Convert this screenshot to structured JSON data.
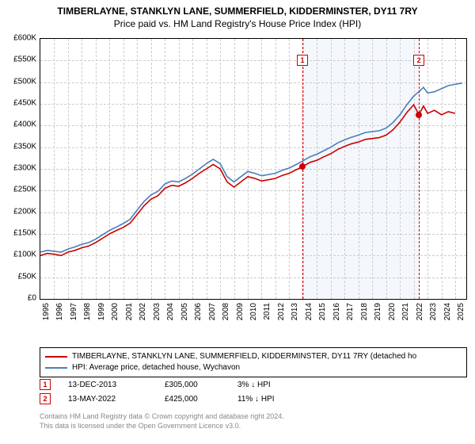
{
  "title": "TIMBERLAYNE, STANKLYN LANE, SUMMERFIELD, KIDDERMINSTER, DY11 7RY",
  "subtitle": "Price paid vs. HM Land Registry's House Price Index (HPI)",
  "chart": {
    "type": "line",
    "xlim": [
      1995,
      2025.8
    ],
    "ylim": [
      0,
      600000
    ],
    "ytick_step": 50000,
    "ylabels": [
      "£0",
      "£50K",
      "£100K",
      "£150K",
      "£200K",
      "£250K",
      "£300K",
      "£350K",
      "£400K",
      "£450K",
      "£500K",
      "£550K",
      "£600K"
    ],
    "xlabels": [
      "1995",
      "1996",
      "1997",
      "1998",
      "1999",
      "2000",
      "2001",
      "2002",
      "2003",
      "2004",
      "2005",
      "2006",
      "2007",
      "2008",
      "2009",
      "2010",
      "2011",
      "2012",
      "2013",
      "2014",
      "2015",
      "2016",
      "2017",
      "2018",
      "2019",
      "2020",
      "2021",
      "2022",
      "2023",
      "2024",
      "2025"
    ],
    "grid_color": "#cccccc",
    "background_color": "#ffffff",
    "shade_ranges": [
      {
        "x0": 2013.95,
        "x1": 2022.37
      }
    ],
    "series": [
      {
        "name": "property",
        "color": "#cc0000",
        "width": 1.6,
        "legend": "TIMBERLAYNE, STANKLYN LANE, SUMMERFIELD, KIDDERMINSTER, DY11 7RY (detached ho",
        "points": [
          [
            1995,
            100000
          ],
          [
            1995.5,
            105000
          ],
          [
            1996,
            103000
          ],
          [
            1996.5,
            100000
          ],
          [
            1997,
            108000
          ],
          [
            1997.5,
            112000
          ],
          [
            1998,
            118000
          ],
          [
            1998.5,
            122000
          ],
          [
            1999,
            130000
          ],
          [
            1999.5,
            140000
          ],
          [
            2000,
            150000
          ],
          [
            2000.5,
            158000
          ],
          [
            2001,
            165000
          ],
          [
            2001.5,
            175000
          ],
          [
            2002,
            195000
          ],
          [
            2002.5,
            215000
          ],
          [
            2003,
            230000
          ],
          [
            2003.5,
            238000
          ],
          [
            2004,
            255000
          ],
          [
            2004.5,
            262000
          ],
          [
            2005,
            260000
          ],
          [
            2005.5,
            268000
          ],
          [
            2006,
            278000
          ],
          [
            2006.5,
            290000
          ],
          [
            2007,
            300000
          ],
          [
            2007.5,
            310000
          ],
          [
            2008,
            300000
          ],
          [
            2008.5,
            270000
          ],
          [
            2009,
            258000
          ],
          [
            2009.5,
            270000
          ],
          [
            2010,
            282000
          ],
          [
            2010.5,
            278000
          ],
          [
            2011,
            272000
          ],
          [
            2011.5,
            275000
          ],
          [
            2012,
            278000
          ],
          [
            2012.5,
            285000
          ],
          [
            2013,
            290000
          ],
          [
            2013.5,
            298000
          ],
          [
            2013.95,
            305000
          ],
          [
            2014.5,
            315000
          ],
          [
            2015,
            320000
          ],
          [
            2015.5,
            328000
          ],
          [
            2016,
            335000
          ],
          [
            2016.5,
            345000
          ],
          [
            2017,
            352000
          ],
          [
            2017.5,
            358000
          ],
          [
            2018,
            362000
          ],
          [
            2018.5,
            368000
          ],
          [
            2019,
            370000
          ],
          [
            2019.5,
            372000
          ],
          [
            2020,
            378000
          ],
          [
            2020.5,
            390000
          ],
          [
            2021,
            408000
          ],
          [
            2021.5,
            430000
          ],
          [
            2022,
            448000
          ],
          [
            2022.37,
            425000
          ],
          [
            2022.7,
            445000
          ],
          [
            2023,
            428000
          ],
          [
            2023.5,
            435000
          ],
          [
            2024,
            425000
          ],
          [
            2024.5,
            432000
          ],
          [
            2025,
            428000
          ]
        ]
      },
      {
        "name": "hpi",
        "color": "#4a7ebb",
        "width": 1.6,
        "legend": "HPI: Average price, detached house, Wychavon",
        "points": [
          [
            1995,
            108000
          ],
          [
            1995.5,
            112000
          ],
          [
            1996,
            110000
          ],
          [
            1996.5,
            108000
          ],
          [
            1997,
            115000
          ],
          [
            1997.5,
            120000
          ],
          [
            1998,
            126000
          ],
          [
            1998.5,
            130000
          ],
          [
            1999,
            138000
          ],
          [
            1999.5,
            148000
          ],
          [
            2000,
            158000
          ],
          [
            2000.5,
            166000
          ],
          [
            2001,
            174000
          ],
          [
            2001.5,
            184000
          ],
          [
            2002,
            205000
          ],
          [
            2002.5,
            225000
          ],
          [
            2003,
            240000
          ],
          [
            2003.5,
            248000
          ],
          [
            2004,
            265000
          ],
          [
            2004.5,
            272000
          ],
          [
            2005,
            270000
          ],
          [
            2005.5,
            278000
          ],
          [
            2006,
            288000
          ],
          [
            2006.5,
            300000
          ],
          [
            2007,
            312000
          ],
          [
            2007.5,
            322000
          ],
          [
            2008,
            312000
          ],
          [
            2008.5,
            282000
          ],
          [
            2009,
            270000
          ],
          [
            2009.5,
            282000
          ],
          [
            2010,
            294000
          ],
          [
            2010.5,
            290000
          ],
          [
            2011,
            284000
          ],
          [
            2011.5,
            287000
          ],
          [
            2012,
            290000
          ],
          [
            2012.5,
            297000
          ],
          [
            2013,
            302000
          ],
          [
            2013.5,
            310000
          ],
          [
            2013.95,
            318000
          ],
          [
            2014.5,
            328000
          ],
          [
            2015,
            334000
          ],
          [
            2015.5,
            342000
          ],
          [
            2016,
            350000
          ],
          [
            2016.5,
            360000
          ],
          [
            2017,
            367000
          ],
          [
            2017.5,
            373000
          ],
          [
            2018,
            378000
          ],
          [
            2018.5,
            384000
          ],
          [
            2019,
            386000
          ],
          [
            2019.5,
            388000
          ],
          [
            2020,
            394000
          ],
          [
            2020.5,
            407000
          ],
          [
            2021,
            425000
          ],
          [
            2021.5,
            448000
          ],
          [
            2022,
            468000
          ],
          [
            2022.37,
            478000
          ],
          [
            2022.7,
            488000
          ],
          [
            2023,
            475000
          ],
          [
            2023.5,
            478000
          ],
          [
            2024,
            485000
          ],
          [
            2024.5,
            492000
          ],
          [
            2025,
            495000
          ],
          [
            2025.5,
            498000
          ]
        ]
      }
    ],
    "markers": [
      {
        "n": "1",
        "x": 2013.95,
        "y": 305000,
        "color": "#cc0000",
        "label_y": 550000
      },
      {
        "n": "2",
        "x": 2022.37,
        "y": 425000,
        "color": "#cc0000",
        "label_y": 550000
      }
    ]
  },
  "legend": {
    "border_color": "#000000"
  },
  "events": [
    {
      "n": "1",
      "color": "#cc0000",
      "date": "13-DEC-2013",
      "price": "£305,000",
      "delta": "3% ↓ HPI"
    },
    {
      "n": "2",
      "color": "#cc0000",
      "date": "13-MAY-2022",
      "price": "£425,000",
      "delta": "11% ↓ HPI"
    }
  ],
  "footer": {
    "line1": "Contains HM Land Registry data © Crown copyright and database right 2024.",
    "line2": "This data is licensed under the Open Government Licence v3.0.",
    "color": "#888888"
  }
}
